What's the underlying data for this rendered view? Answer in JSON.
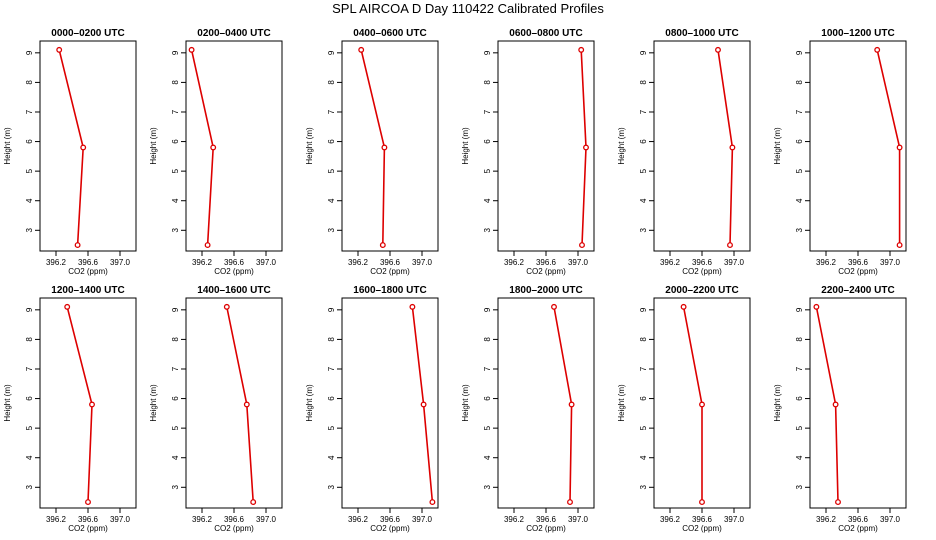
{
  "page_title": "SPL AIRCOA D  Day 110422  Calibrated Profiles",
  "chart_data": [
    {
      "type": "line",
      "title": "0000–0200 UTC",
      "xlabel": "CO2 (ppm)",
      "ylabel": "Height (m)",
      "xlim": [
        396.0,
        397.2
      ],
      "ylim": [
        2.3,
        9.4
      ],
      "xticks": [
        "396.2",
        "396.6",
        "397.0"
      ],
      "yticks": [
        "3",
        "4",
        "5",
        "6",
        "7",
        "8",
        "9"
      ],
      "color": "#dd0000",
      "points": [
        {
          "x": 396.24,
          "y": 9.1
        },
        {
          "x": 396.54,
          "y": 5.8
        },
        {
          "x": 396.47,
          "y": 2.5
        }
      ]
    },
    {
      "type": "line",
      "title": "0200–0400 UTC",
      "xlabel": "CO2 (ppm)",
      "ylabel": "Height (m)",
      "xlim": [
        396.0,
        397.2
      ],
      "ylim": [
        2.3,
        9.4
      ],
      "xticks": [
        "396.2",
        "396.6",
        "397.0"
      ],
      "yticks": [
        "3",
        "4",
        "5",
        "6",
        "7",
        "8",
        "9"
      ],
      "color": "#dd0000",
      "points": [
        {
          "x": 396.07,
          "y": 9.1
        },
        {
          "x": 396.34,
          "y": 5.8
        },
        {
          "x": 396.27,
          "y": 2.5
        }
      ]
    },
    {
      "type": "line",
      "title": "0400–0600 UTC",
      "xlabel": "CO2 (ppm)",
      "ylabel": "Height (m)",
      "xlim": [
        396.0,
        397.2
      ],
      "ylim": [
        2.3,
        9.4
      ],
      "xticks": [
        "396.2",
        "396.6",
        "397.0"
      ],
      "yticks": [
        "3",
        "4",
        "5",
        "6",
        "7",
        "8",
        "9"
      ],
      "color": "#dd0000",
      "points": [
        {
          "x": 396.24,
          "y": 9.1
        },
        {
          "x": 396.53,
          "y": 5.8
        },
        {
          "x": 396.51,
          "y": 2.5
        }
      ]
    },
    {
      "type": "line",
      "title": "0600–0800 UTC",
      "xlabel": "CO2 (ppm)",
      "ylabel": "Height (m)",
      "xlim": [
        396.0,
        397.2
      ],
      "ylim": [
        2.3,
        9.4
      ],
      "xticks": [
        "396.2",
        "396.6",
        "397.0"
      ],
      "yticks": [
        "3",
        "4",
        "5",
        "6",
        "7",
        "8",
        "9"
      ],
      "color": "#dd0000",
      "points": [
        {
          "x": 397.04,
          "y": 9.1
        },
        {
          "x": 397.1,
          "y": 5.8
        },
        {
          "x": 397.05,
          "y": 2.5
        }
      ]
    },
    {
      "type": "line",
      "title": "0800–1000 UTC",
      "xlabel": "CO2 (ppm)",
      "ylabel": "Height (m)",
      "xlim": [
        396.0,
        397.2
      ],
      "ylim": [
        2.3,
        9.4
      ],
      "xticks": [
        "396.2",
        "396.6",
        "397.0"
      ],
      "yticks": [
        "3",
        "4",
        "5",
        "6",
        "7",
        "8",
        "9"
      ],
      "color": "#dd0000",
      "points": [
        {
          "x": 396.8,
          "y": 9.1
        },
        {
          "x": 396.98,
          "y": 5.8
        },
        {
          "x": 396.95,
          "y": 2.5
        }
      ]
    },
    {
      "type": "line",
      "title": "1000–1200 UTC",
      "xlabel": "CO2 (ppm)",
      "ylabel": "Height (m)",
      "xlim": [
        396.0,
        397.2
      ],
      "ylim": [
        2.3,
        9.4
      ],
      "xticks": [
        "396.2",
        "396.6",
        "397.0"
      ],
      "yticks": [
        "3",
        "4",
        "5",
        "6",
        "7",
        "8",
        "9"
      ],
      "color": "#dd0000",
      "points": [
        {
          "x": 396.84,
          "y": 9.1
        },
        {
          "x": 397.12,
          "y": 5.8
        },
        {
          "x": 397.12,
          "y": 2.5
        }
      ]
    },
    {
      "type": "line",
      "title": "1200–1400 UTC",
      "xlabel": "CO2 (ppm)",
      "ylabel": "Height (m)",
      "xlim": [
        396.0,
        397.2
      ],
      "ylim": [
        2.3,
        9.4
      ],
      "xticks": [
        "396.2",
        "396.6",
        "397.0"
      ],
      "yticks": [
        "3",
        "4",
        "5",
        "6",
        "7",
        "8",
        "9"
      ],
      "color": "#dd0000",
      "points": [
        {
          "x": 396.34,
          "y": 9.1
        },
        {
          "x": 396.65,
          "y": 5.8
        },
        {
          "x": 396.6,
          "y": 2.5
        }
      ]
    },
    {
      "type": "line",
      "title": "1400–1600 UTC",
      "xlabel": "CO2 (ppm)",
      "ylabel": "Height (m)",
      "xlim": [
        396.0,
        397.2
      ],
      "ylim": [
        2.3,
        9.4
      ],
      "xticks": [
        "396.2",
        "396.6",
        "397.0"
      ],
      "yticks": [
        "3",
        "4",
        "5",
        "6",
        "7",
        "8",
        "9"
      ],
      "color": "#dd0000",
      "points": [
        {
          "x": 396.51,
          "y": 9.1
        },
        {
          "x": 396.76,
          "y": 5.8
        },
        {
          "x": 396.84,
          "y": 2.5
        }
      ]
    },
    {
      "type": "line",
      "title": "1600–1800 UTC",
      "xlabel": "CO2 (ppm)",
      "ylabel": "Height (m)",
      "xlim": [
        396.0,
        397.2
      ],
      "ylim": [
        2.3,
        9.4
      ],
      "xticks": [
        "396.2",
        "396.6",
        "397.0"
      ],
      "yticks": [
        "3",
        "4",
        "5",
        "6",
        "7",
        "8",
        "9"
      ],
      "color": "#dd0000",
      "points": [
        {
          "x": 396.88,
          "y": 9.1
        },
        {
          "x": 397.02,
          "y": 5.8
        },
        {
          "x": 397.13,
          "y": 2.5
        }
      ]
    },
    {
      "type": "line",
      "title": "1800–2000 UTC",
      "xlabel": "CO2 (ppm)",
      "ylabel": "Height (m)",
      "xlim": [
        396.0,
        397.2
      ],
      "ylim": [
        2.3,
        9.4
      ],
      "xticks": [
        "396.2",
        "396.6",
        "397.0"
      ],
      "yticks": [
        "3",
        "4",
        "5",
        "6",
        "7",
        "8",
        "9"
      ],
      "color": "#dd0000",
      "points": [
        {
          "x": 396.7,
          "y": 9.1
        },
        {
          "x": 396.92,
          "y": 5.8
        },
        {
          "x": 396.9,
          "y": 2.5
        }
      ]
    },
    {
      "type": "line",
      "title": "2000–2200 UTC",
      "xlabel": "CO2 (ppm)",
      "ylabel": "Height (m)",
      "xlim": [
        396.0,
        397.2
      ],
      "ylim": [
        2.3,
        9.4
      ],
      "xticks": [
        "396.2",
        "396.6",
        "397.0"
      ],
      "yticks": [
        "3",
        "4",
        "5",
        "6",
        "7",
        "8",
        "9"
      ],
      "color": "#dd0000",
      "points": [
        {
          "x": 396.37,
          "y": 9.1
        },
        {
          "x": 396.6,
          "y": 5.8
        },
        {
          "x": 396.6,
          "y": 2.5
        }
      ]
    },
    {
      "type": "line",
      "title": "2200–2400 UTC",
      "xlabel": "CO2 (ppm)",
      "ylabel": "Height (m)",
      "xlim": [
        396.0,
        397.2
      ],
      "ylim": [
        2.3,
        9.4
      ],
      "xticks": [
        "396.2",
        "396.6",
        "397.0"
      ],
      "yticks": [
        "3",
        "4",
        "5",
        "6",
        "7",
        "8",
        "9"
      ],
      "color": "#dd0000",
      "points": [
        {
          "x": 396.08,
          "y": 9.1
        },
        {
          "x": 396.32,
          "y": 5.8
        },
        {
          "x": 396.35,
          "y": 2.5
        }
      ]
    }
  ]
}
